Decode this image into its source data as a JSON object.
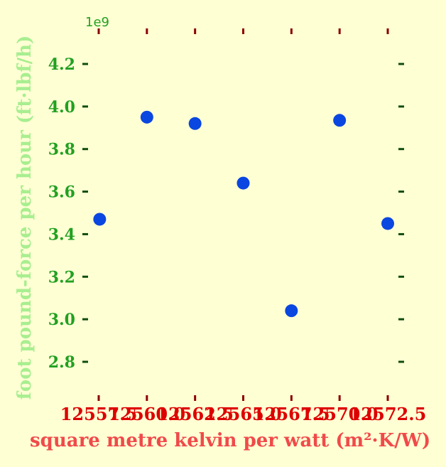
{
  "chart_data": {
    "type": "scatter",
    "xlabel": "square metre kelvin per watt (m²·K/W)",
    "ylabel": "foot pound-force per hour (ft·lbf/h)",
    "y_offset_label": "1e9",
    "x_tick_labels": [
      "12557.5",
      "12560.0",
      "12562.5",
      "12565.0",
      "12567.5",
      "12570.0",
      "12572.5"
    ],
    "y_tick_labels": [
      "2.8",
      "3.0",
      "3.2",
      "3.4",
      "3.6",
      "3.8",
      "4.0",
      "4.2"
    ],
    "x": [
      12557.55,
      12560.0,
      12562.5,
      12565.0,
      12567.5,
      12570.0,
      12572.5
    ],
    "y": [
      3470000000.0,
      3950000000.0,
      3920000000.0,
      3640000000.0,
      3040000000.0,
      3935000000.0,
      3450000000.0
    ],
    "xlim": [
      12557.5,
      12572.5
    ],
    "ylim": [
      2800000000.0,
      4200000000.0
    ],
    "grid": false,
    "colors": {
      "background": "#ffffd4",
      "points": "#0a46e0",
      "x_ticks": "#8b0000",
      "x_tick_labels": "#dd0000",
      "x_label": "#f04a4a",
      "y_ticks": "#0e4d0e",
      "y_tick_labels": "#22a022",
      "y_label": "#a8ee90",
      "offset_label": "#22a022"
    }
  }
}
